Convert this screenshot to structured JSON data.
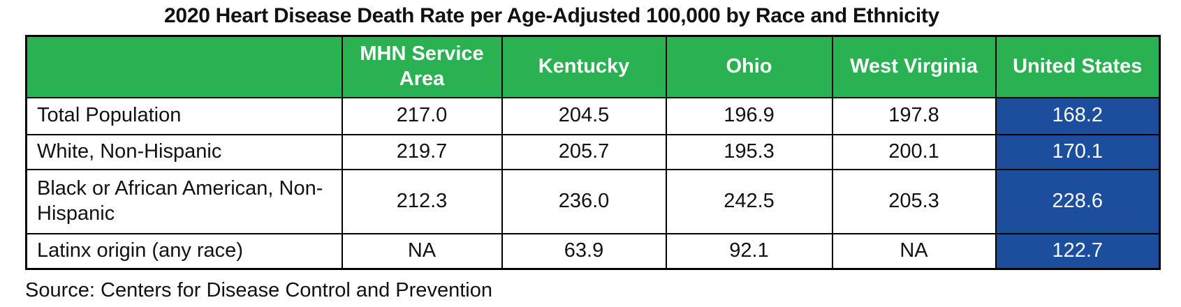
{
  "title": "2020 Heart Disease Death Rate per Age-Adjusted 100,000 by Race and Ethnicity",
  "source_note": "Source: Centers for Disease Control and Prevention",
  "colors": {
    "header_bg_green": "#2AB252",
    "us_column_bg_blue": "#1B4F9D",
    "border": "#000000",
    "header_text": "#FFFFFF",
    "body_text": "#121212"
  },
  "chart_data": {
    "type": "table",
    "title": "2020 Heart Disease Death Rate per Age-Adjusted 100,000 by Race and Ethnicity",
    "columns": [
      "",
      "MHN Service Area",
      "Kentucky",
      "Ohio",
      "West Virginia",
      "United States"
    ],
    "rows": [
      {
        "label": "Total Population",
        "values": [
          "217.0",
          "204.5",
          "196.9",
          "197.8",
          "168.2"
        ]
      },
      {
        "label": "White, Non-Hispanic",
        "values": [
          "219.7",
          "205.7",
          "195.3",
          "200.1",
          "170.1"
        ]
      },
      {
        "label": "Black or African American, Non-Hispanic",
        "values": [
          "212.3",
          "236.0",
          "242.5",
          "205.3",
          "228.6"
        ]
      },
      {
        "label": "Latinx origin (any race)",
        "values": [
          "NA",
          "63.9",
          "92.1",
          "NA",
          "122.7"
        ]
      }
    ],
    "highlight_column": "United States",
    "layout_hints": {
      "header_style": "green background, white bold text",
      "highlight_style": "dark blue background, white text",
      "grid": "black cell borders"
    },
    "source": "Source: Centers for Disease Control and Prevention"
  }
}
